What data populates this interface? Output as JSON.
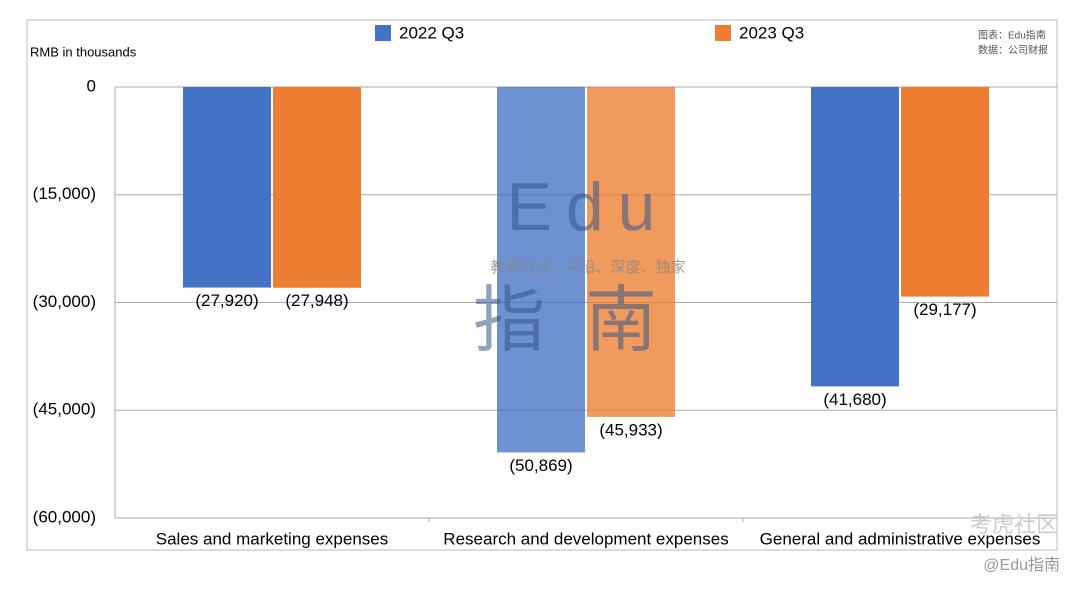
{
  "chart_data": {
    "type": "bar",
    "y_label": "RMB in thousands",
    "categories": [
      "Sales and marketing expenses",
      "Research and development expenses",
      "General and administrative expenses"
    ],
    "series": [
      {
        "name": "2022 Q3",
        "color": "#4472c4",
        "values": [
          -27920,
          -50869,
          -41680
        ],
        "value_labels": [
          "(27,920)",
          "(50,869)",
          "(41,680)"
        ]
      },
      {
        "name": "2023 Q3",
        "color": "#ed7d31",
        "values": [
          -27948,
          -45933,
          -29177
        ],
        "value_labels": [
          "(27,948)",
          "(45,933)",
          "(29,177)"
        ]
      }
    ],
    "ylim": [
      -60000,
      0
    ],
    "yticks": [
      0,
      {
        "value": -15000,
        "label": "(15,000)"
      },
      {
        "value": -30000,
        "label": "(30,000)"
      },
      {
        "value": -45000,
        "label": "(45,000)"
      },
      {
        "value": -60000,
        "label": "(60,000)"
      }
    ],
    "grid": true,
    "legend": "top",
    "annotations": [
      "图表：Edu指南",
      "数据：公司财报"
    ],
    "watermarks": [
      "Edu",
      "教育行业，前沿、深度、独家",
      "指南",
      "考虎社区",
      "@Edu指南"
    ]
  }
}
